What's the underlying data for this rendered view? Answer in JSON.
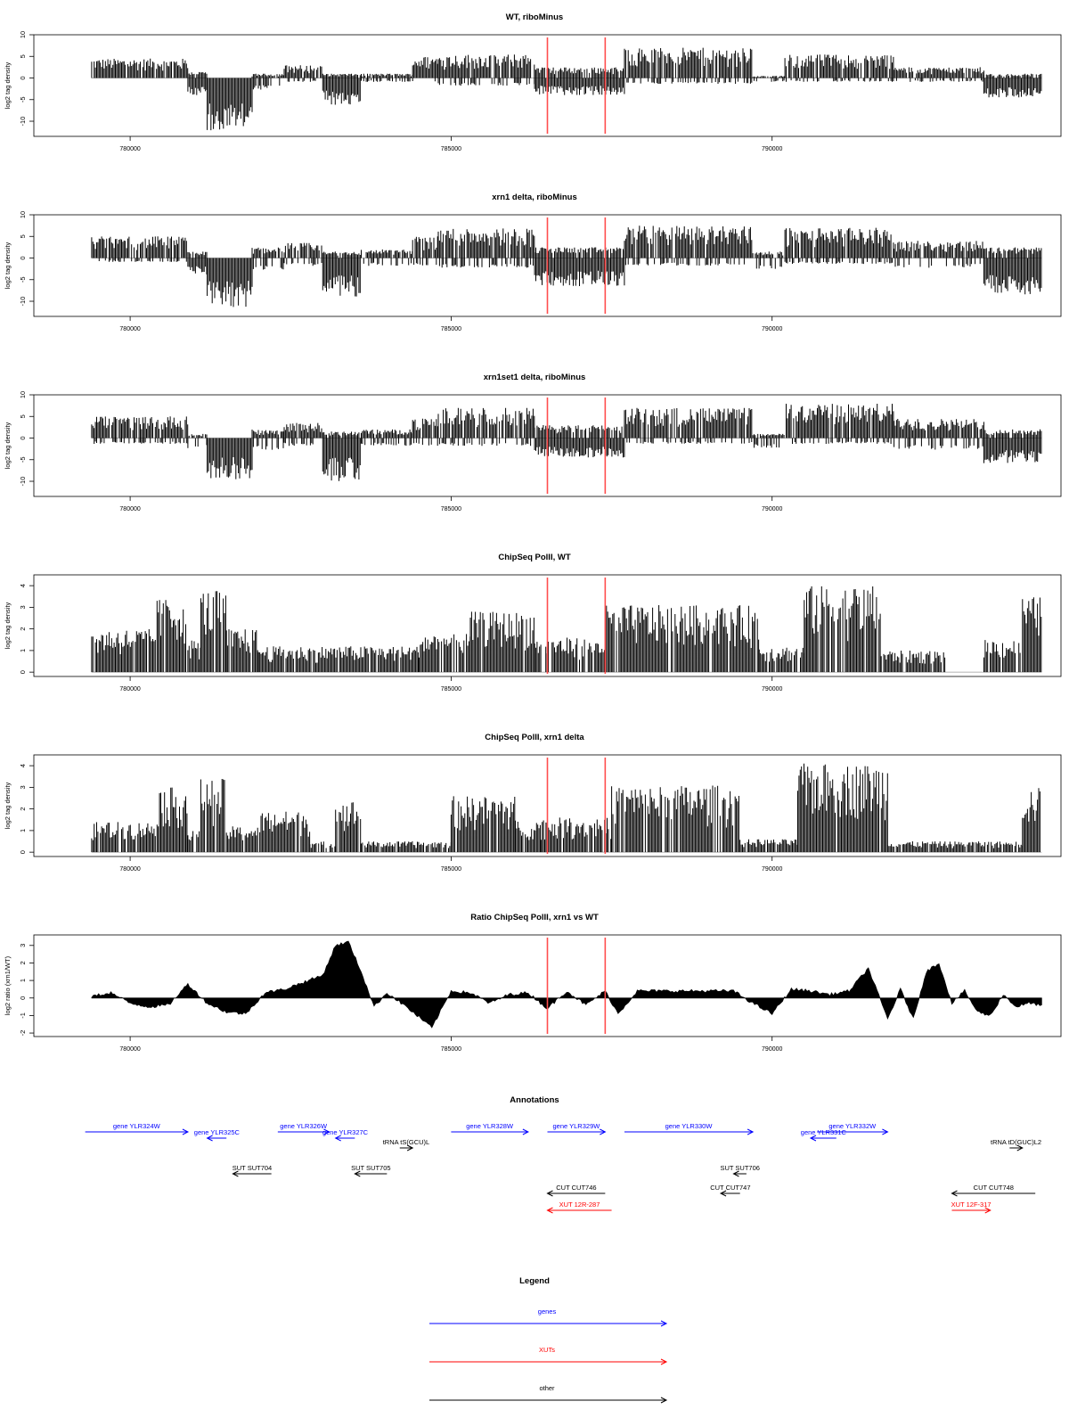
{
  "chart_data": [
    {
      "type": "bar",
      "title": "WT, riboMinus",
      "ylabel": "log2 tag density",
      "xlim": [
        778500,
        794500
      ],
      "ylim": [
        -13.5,
        10
      ],
      "yticks": [
        -10,
        -5,
        0,
        5,
        10
      ],
      "xticks": [
        780000,
        785000,
        790000
      ],
      "markers": [
        786500,
        787400
      ],
      "profile": [
        {
          "x0": 779400,
          "x1": 780900,
          "top": 4.5,
          "bot": 0
        },
        {
          "x0": 780900,
          "x1": 781200,
          "top": 1.5,
          "bot": -4
        },
        {
          "x0": 781200,
          "x1": 781900,
          "top": 0,
          "bot": -12.5
        },
        {
          "x0": 781900,
          "x1": 782400,
          "top": 1,
          "bot": -3
        },
        {
          "x0": 782400,
          "x1": 783000,
          "top": 3,
          "bot": -1
        },
        {
          "x0": 783000,
          "x1": 783600,
          "top": 1,
          "bot": -6.5
        },
        {
          "x0": 783600,
          "x1": 784400,
          "top": 1,
          "bot": -1
        },
        {
          "x0": 784400,
          "x1": 784800,
          "top": 5,
          "bot": -1
        },
        {
          "x0": 784800,
          "x1": 786300,
          "top": 5.5,
          "bot": -2
        },
        {
          "x0": 786300,
          "x1": 787700,
          "top": 2.5,
          "bot": -4
        },
        {
          "x0": 787700,
          "x1": 789700,
          "top": 7,
          "bot": -1.5
        },
        {
          "x0": 789700,
          "x1": 790200,
          "top": 0.5,
          "bot": -1
        },
        {
          "x0": 790200,
          "x1": 791900,
          "top": 5.5,
          "bot": -1
        },
        {
          "x0": 791900,
          "x1": 793300,
          "top": 2.5,
          "bot": -1
        },
        {
          "x0": 793300,
          "x1": 794200,
          "top": 1,
          "bot": -4.5
        }
      ]
    },
    {
      "type": "bar",
      "title": "xrn1 delta, riboMinus",
      "ylabel": "log2 tag density",
      "xlim": [
        778500,
        794500
      ],
      "ylim": [
        -13.5,
        10
      ],
      "yticks": [
        -10,
        -5,
        0,
        5,
        10
      ],
      "xticks": [
        780000,
        785000,
        790000
      ],
      "markers": [
        786500,
        787400
      ],
      "profile": [
        {
          "x0": 779400,
          "x1": 780900,
          "top": 5,
          "bot": -1
        },
        {
          "x0": 780900,
          "x1": 781200,
          "top": 1.5,
          "bot": -4
        },
        {
          "x0": 781200,
          "x1": 781900,
          "top": 0,
          "bot": -11.5
        },
        {
          "x0": 781900,
          "x1": 782400,
          "top": 2.5,
          "bot": -3
        },
        {
          "x0": 782400,
          "x1": 783000,
          "top": 3.5,
          "bot": -2
        },
        {
          "x0": 783000,
          "x1": 783600,
          "top": 1.5,
          "bot": -9
        },
        {
          "x0": 783600,
          "x1": 784400,
          "top": 2,
          "bot": -2
        },
        {
          "x0": 784400,
          "x1": 784800,
          "top": 5,
          "bot": -2
        },
        {
          "x0": 784800,
          "x1": 786300,
          "top": 7,
          "bot": -2.5
        },
        {
          "x0": 786300,
          "x1": 787700,
          "top": 2.5,
          "bot": -6.5
        },
        {
          "x0": 787700,
          "x1": 789700,
          "top": 7.5,
          "bot": -2
        },
        {
          "x0": 789700,
          "x1": 790200,
          "top": 1.5,
          "bot": -3
        },
        {
          "x0": 790200,
          "x1": 791900,
          "top": 7,
          "bot": -1.5
        },
        {
          "x0": 791900,
          "x1": 793300,
          "top": 4,
          "bot": -2.5
        },
        {
          "x0": 793300,
          "x1": 794200,
          "top": 2.5,
          "bot": -8.5
        }
      ]
    },
    {
      "type": "bar",
      "title": "xrn1set1 delta, riboMinus",
      "ylabel": "log2 tag density",
      "xlim": [
        778500,
        794500
      ],
      "ylim": [
        -13.5,
        10
      ],
      "yticks": [
        -10,
        -5,
        0,
        5,
        10
      ],
      "xticks": [
        780000,
        785000,
        790000
      ],
      "markers": [
        786500,
        787400
      ],
      "profile": [
        {
          "x0": 779400,
          "x1": 780900,
          "top": 5,
          "bot": -1.5
        },
        {
          "x0": 780900,
          "x1": 781200,
          "top": 1,
          "bot": -3
        },
        {
          "x0": 781200,
          "x1": 781900,
          "top": 0,
          "bot": -9.5
        },
        {
          "x0": 781900,
          "x1": 782400,
          "top": 2,
          "bot": -3
        },
        {
          "x0": 782400,
          "x1": 783000,
          "top": 3.5,
          "bot": -2
        },
        {
          "x0": 783000,
          "x1": 783600,
          "top": 1.5,
          "bot": -10
        },
        {
          "x0": 783600,
          "x1": 784400,
          "top": 2,
          "bot": -2
        },
        {
          "x0": 784400,
          "x1": 784800,
          "top": 4.5,
          "bot": -2
        },
        {
          "x0": 784800,
          "x1": 786300,
          "top": 7,
          "bot": -2
        },
        {
          "x0": 786300,
          "x1": 787700,
          "top": 3,
          "bot": -4.5
        },
        {
          "x0": 787700,
          "x1": 789700,
          "top": 7,
          "bot": -1.5
        },
        {
          "x0": 789700,
          "x1": 790200,
          "top": 1,
          "bot": -2.5
        },
        {
          "x0": 790200,
          "x1": 791900,
          "top": 8,
          "bot": -1.5
        },
        {
          "x0": 791900,
          "x1": 793300,
          "top": 4.5,
          "bot": -3
        },
        {
          "x0": 793300,
          "x1": 794200,
          "top": 2,
          "bot": -6
        }
      ]
    },
    {
      "type": "bar",
      "title": "ChipSeq PolII, WT",
      "ylabel": "log2 tag density",
      "xlim": [
        778500,
        794500
      ],
      "ylim": [
        -0.2,
        4.5
      ],
      "yticks": [
        0,
        1,
        2,
        3,
        4
      ],
      "xticks": [
        780000,
        785000,
        790000
      ],
      "markers": [
        786500,
        787400
      ],
      "profile": [
        {
          "x0": 779400,
          "x1": 780400,
          "top": 2,
          "bot": 0
        },
        {
          "x0": 780400,
          "x1": 780900,
          "top": 3.4,
          "bot": 0
        },
        {
          "x0": 780900,
          "x1": 781100,
          "top": 1.5,
          "bot": 0
        },
        {
          "x0": 781100,
          "x1": 781500,
          "top": 3.8,
          "bot": 0
        },
        {
          "x0": 781500,
          "x1": 782000,
          "top": 2,
          "bot": 0
        },
        {
          "x0": 782000,
          "x1": 784500,
          "top": 1.2,
          "bot": 0
        },
        {
          "x0": 784500,
          "x1": 785300,
          "top": 1.8,
          "bot": 0
        },
        {
          "x0": 785300,
          "x1": 786300,
          "top": 2.8,
          "bot": 0
        },
        {
          "x0": 786300,
          "x1": 787400,
          "top": 1.6,
          "bot": 0
        },
        {
          "x0": 787400,
          "x1": 789800,
          "top": 3.1,
          "bot": 0
        },
        {
          "x0": 789800,
          "x1": 790500,
          "top": 1.2,
          "bot": 0
        },
        {
          "x0": 790500,
          "x1": 791700,
          "top": 4,
          "bot": 0
        },
        {
          "x0": 791700,
          "x1": 792700,
          "top": 1,
          "bot": 0
        },
        {
          "x0": 792700,
          "x1": 793300,
          "top": 0,
          "bot": 0
        },
        {
          "x0": 793300,
          "x1": 793900,
          "top": 1.5,
          "bot": 0
        },
        {
          "x0": 793900,
          "x1": 794200,
          "top": 3.5,
          "bot": 0
        }
      ]
    },
    {
      "type": "bar",
      "title": "ChipSeq PolII, xrn1 delta",
      "ylabel": "log2 tag density",
      "xlim": [
        778500,
        794500
      ],
      "ylim": [
        -0.2,
        4.5
      ],
      "yticks": [
        0,
        1,
        2,
        3,
        4
      ],
      "xticks": [
        780000,
        785000,
        790000
      ],
      "markers": [
        786500,
        787400
      ],
      "profile": [
        {
          "x0": 779400,
          "x1": 780400,
          "top": 1.4,
          "bot": 0
        },
        {
          "x0": 780400,
          "x1": 780900,
          "top": 3,
          "bot": 0
        },
        {
          "x0": 780900,
          "x1": 781100,
          "top": 1,
          "bot": 0
        },
        {
          "x0": 781100,
          "x1": 781500,
          "top": 3.4,
          "bot": 0
        },
        {
          "x0": 781500,
          "x1": 782000,
          "top": 1.2,
          "bot": 0
        },
        {
          "x0": 782000,
          "x1": 782800,
          "top": 1.9,
          "bot": 0
        },
        {
          "x0": 782800,
          "x1": 783200,
          "top": 0.5,
          "bot": 0
        },
        {
          "x0": 783200,
          "x1": 783600,
          "top": 2.4,
          "bot": 0
        },
        {
          "x0": 783600,
          "x1": 785000,
          "top": 0.5,
          "bot": 0
        },
        {
          "x0": 785000,
          "x1": 786000,
          "top": 2.6,
          "bot": 0
        },
        {
          "x0": 786000,
          "x1": 786400,
          "top": 1.5,
          "bot": 0
        },
        {
          "x0": 786400,
          "x1": 787500,
          "top": 1.6,
          "bot": 0
        },
        {
          "x0": 787500,
          "x1": 789500,
          "top": 3.1,
          "bot": 0
        },
        {
          "x0": 789500,
          "x1": 790400,
          "top": 0.6,
          "bot": 0
        },
        {
          "x0": 790400,
          "x1": 791800,
          "top": 4.1,
          "bot": 0
        },
        {
          "x0": 791800,
          "x1": 793900,
          "top": 0.5,
          "bot": 0
        },
        {
          "x0": 793900,
          "x1": 794200,
          "top": 3,
          "bot": 0
        }
      ]
    },
    {
      "type": "area",
      "title": "Ratio ChipSeq PolII, xrn1 vs WT",
      "ylabel": "log2 ratio (xrn1/WT)",
      "xlim": [
        778500,
        794500
      ],
      "ylim": [
        -2.2,
        3.6
      ],
      "yticks": [
        -2,
        -1,
        0,
        1,
        2,
        3
      ],
      "xticks": [
        780000,
        785000,
        790000
      ],
      "markers": [
        786500,
        787400
      ],
      "x": [
        779400,
        779700,
        780000,
        780300,
        780600,
        780900,
        781200,
        781500,
        781800,
        782100,
        782400,
        782700,
        783000,
        783200,
        783400,
        783600,
        783800,
        784000,
        784300,
        784700,
        785000,
        785300,
        785600,
        785900,
        786200,
        786500,
        786800,
        787100,
        787400,
        787600,
        787900,
        788200,
        788500,
        788800,
        789100,
        789400,
        789700,
        790000,
        790300,
        790600,
        790900,
        791200,
        791500,
        791800,
        792000,
        792200,
        792400,
        792600,
        792800,
        793000,
        793200,
        793400,
        793600,
        793800,
        794000,
        794200
      ],
      "y": [
        0.1,
        0.3,
        -0.3,
        -0.5,
        -0.4,
        0.8,
        -0.3,
        -0.8,
        -0.9,
        0.3,
        0.5,
        0.9,
        1.3,
        3,
        3.2,
        1.5,
        -0.5,
        0.3,
        -0.5,
        -1.7,
        0.4,
        0.3,
        -0.3,
        0.2,
        0.3,
        -0.6,
        0.4,
        -0.4,
        0.4,
        -0.9,
        0.4,
        0.4,
        0.4,
        0.4,
        0.4,
        0.4,
        -0.3,
        -0.9,
        0.5,
        0.4,
        0.2,
        0.4,
        1.7,
        -1.2,
        0.5,
        -1.2,
        1.5,
        2,
        -0.3,
        0.4,
        -0.8,
        -1,
        0.2,
        -0.5,
        -0.3,
        -0.4
      ]
    }
  ],
  "annotations": {
    "title": "Annotations",
    "items": [
      {
        "label": "gene YLR324W",
        "color": "#0000ff",
        "row": 0,
        "x0": 779300,
        "x1": 780900,
        "dir": "right"
      },
      {
        "label": "gene YLR325C",
        "color": "#0000ff",
        "row": 1,
        "x0": 781200,
        "x1": 781500,
        "dir": "left"
      },
      {
        "label": "gene YLR326W",
        "color": "#0000ff",
        "row": 0,
        "x0": 782300,
        "x1": 783100,
        "dir": "right"
      },
      {
        "label": "gene YLR327C",
        "color": "#0000ff",
        "row": 1,
        "x0": 783200,
        "x1": 783500,
        "dir": "left"
      },
      {
        "label": "tRNA tS(GCU)L",
        "color": "#000000",
        "row": 2,
        "x0": 784200,
        "x1": 784400,
        "dir": "right"
      },
      {
        "label": "gene YLR328W",
        "color": "#0000ff",
        "row": 0,
        "x0": 785000,
        "x1": 786200,
        "dir": "right"
      },
      {
        "label": "gene YLR329W",
        "color": "#0000ff",
        "row": 0,
        "x0": 786500,
        "x1": 787400,
        "dir": "right"
      },
      {
        "label": "gene YLR330W",
        "color": "#0000ff",
        "row": 0,
        "x0": 787700,
        "x1": 789700,
        "dir": "right"
      },
      {
        "label": "gene YLR331C",
        "color": "#0000ff",
        "row": 1,
        "x0": 790600,
        "x1": 791000,
        "dir": "left"
      },
      {
        "label": "gene YLR332W",
        "color": "#0000ff",
        "row": 0,
        "x0": 790700,
        "x1": 791800,
        "dir": "right"
      },
      {
        "label": "tRNA tD(GUC)L2",
        "color": "#000000",
        "row": 2,
        "x0": 793700,
        "x1": 793900,
        "dir": "right"
      },
      {
        "label": "SUT SUT704",
        "color": "#000000",
        "row": 3,
        "x0": 781600,
        "x1": 782200,
        "dir": "left"
      },
      {
        "label": "SUT SUT705",
        "color": "#000000",
        "row": 3,
        "x0": 783500,
        "x1": 784000,
        "dir": "left"
      },
      {
        "label": "SUT SUT706",
        "color": "#000000",
        "row": 3,
        "x0": 789400,
        "x1": 789600,
        "dir": "left"
      },
      {
        "label": "CUT CUT746",
        "color": "#000000",
        "row": 4,
        "x0": 786500,
        "x1": 787400,
        "dir": "left"
      },
      {
        "label": "CUT CUT747",
        "color": "#000000",
        "row": 4,
        "x0": 789200,
        "x1": 789500,
        "dir": "left"
      },
      {
        "label": "CUT CUT748",
        "color": "#000000",
        "row": 4,
        "x0": 792800,
        "x1": 794100,
        "dir": "left"
      },
      {
        "label": "XUT 12R-287",
        "color": "#ff0000",
        "row": 5,
        "x0": 786500,
        "x1": 787500,
        "dir": "left"
      },
      {
        "label": "XUT 12F-317",
        "color": "#ff0000",
        "row": 5,
        "x0": 792800,
        "x1": 793400,
        "dir": "right"
      }
    ]
  },
  "legend": {
    "title": "Legend",
    "items": [
      {
        "label": "genes",
        "color": "#0000ff"
      },
      {
        "label": "XUTs",
        "color": "#ff0000"
      },
      {
        "label": "other",
        "color": "#000000"
      }
    ]
  }
}
